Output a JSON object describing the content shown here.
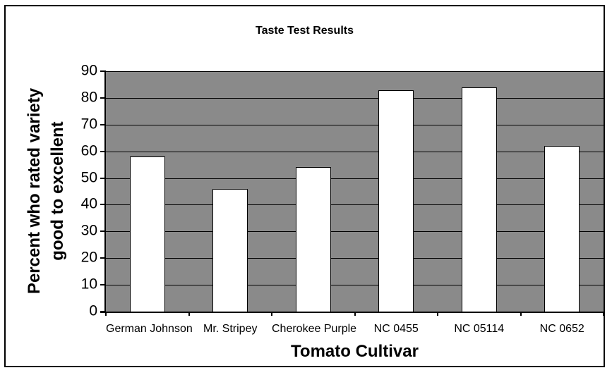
{
  "chart_data": {
    "type": "bar",
    "title": "Taste Test Results",
    "categories": [
      "German Johnson",
      "Mr. Stripey",
      "Cherokee Purple",
      "NC 0455",
      "NC 05114",
      "NC 0652"
    ],
    "values": [
      58,
      46,
      54,
      83,
      84,
      62
    ],
    "xlabel": "Tomato Cultivar",
    "ylabel": "Percent who rated variety good to excellent",
    "ylabel_lines": [
      "Percent who rated variety",
      "good to excellent"
    ],
    "ylim": [
      0,
      90
    ],
    "yticks": [
      0,
      10,
      20,
      30,
      40,
      50,
      60,
      70,
      80,
      90
    ],
    "grid": "horizontal",
    "legend": "none",
    "colors": {
      "plot_background": "#8a8a8a",
      "bar_fill": "#ffffff",
      "bar_border": "#000000",
      "gridline": "#000000",
      "axis": "#000000",
      "text": "#000000",
      "frame_border": "#000000",
      "page_background": "#ffffff"
    }
  }
}
